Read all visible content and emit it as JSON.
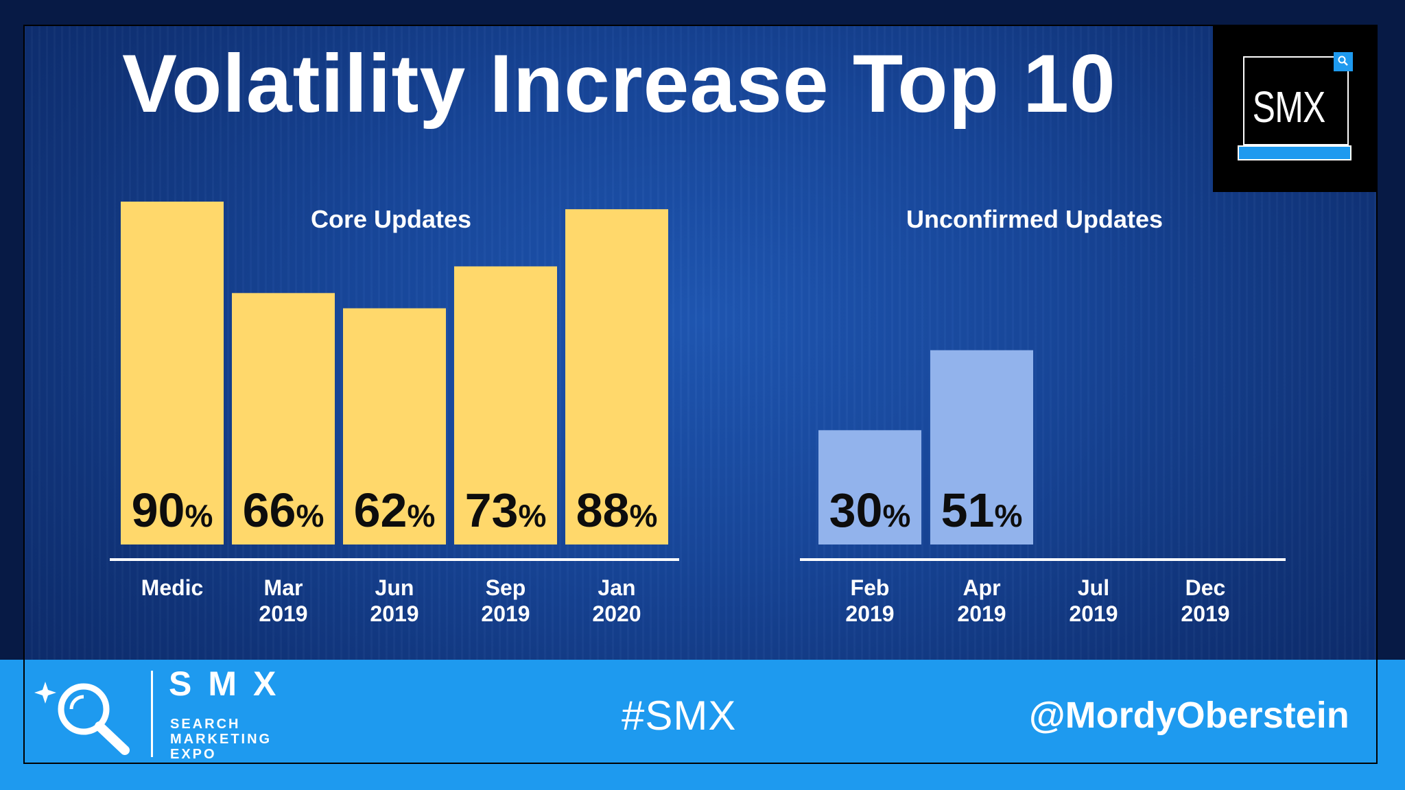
{
  "slide": {
    "title": "Volatility Increase Top 10",
    "logo_text": "SMX"
  },
  "footer": {
    "brand": "SMX",
    "sub_lines": [
      "SEARCH",
      "MARKETING",
      "EXPO"
    ],
    "hashtag": "#SMX",
    "handle": "@MordyOberstein"
  },
  "colors": {
    "core_bar": "#ffd86b",
    "unconfirmed_bar": "#92b3ec",
    "value_text": "#0d0d0d",
    "axis_line": "#ffffff",
    "footer_bg": "#1e9aef"
  },
  "chart_data": [
    {
      "type": "bar",
      "title": "Core Updates",
      "categories": [
        [
          "Medic"
        ],
        [
          "Mar",
          "2019"
        ],
        [
          "Jun",
          "2019"
        ],
        [
          "Sep",
          "2019"
        ],
        [
          "Jan",
          "2020"
        ]
      ],
      "values": [
        90,
        66,
        62,
        73,
        88
      ],
      "value_suffix": "%",
      "ylim": [
        0,
        100
      ],
      "color": "#ffd86b",
      "grid": false
    },
    {
      "type": "bar",
      "title": "Unconfirmed Updates",
      "categories": [
        [
          "Feb",
          "2019"
        ],
        [
          "Apr",
          "2019"
        ],
        [
          "Jul",
          "2019"
        ],
        [
          "Dec",
          "2019"
        ]
      ],
      "values": [
        30,
        51,
        null,
        null
      ],
      "value_suffix": "%",
      "ylim": [
        0,
        100
      ],
      "color": "#92b3ec",
      "grid": false
    }
  ]
}
